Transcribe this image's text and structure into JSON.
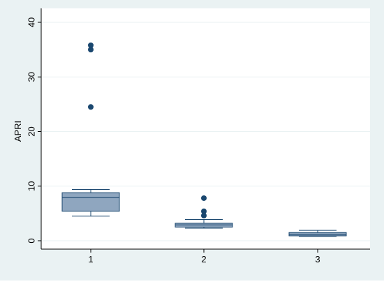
{
  "chart_data": {
    "type": "boxplot",
    "title": "",
    "xlabel": "",
    "ylabel": "APRI",
    "ylim": [
      0,
      40
    ],
    "y_ticks": [
      0,
      10,
      20,
      30,
      40
    ],
    "categories": [
      "1",
      "2",
      "3"
    ],
    "grid": true,
    "colors": {
      "outer_background": "#eaf2f3",
      "plot_background": "#ffffff",
      "gridline": "#eaf2f3",
      "box_fill": "#8fa6bf",
      "box_stroke": "#1a476f",
      "outlier": "#1a476f"
    },
    "boxes": [
      {
        "category": "1",
        "whisker_low": 4.5,
        "q1": 5.4,
        "median": 7.9,
        "q3": 8.8,
        "whisker_high": 9.4,
        "outliers": [
          24.5,
          35.0,
          35.8
        ]
      },
      {
        "category": "2",
        "whisker_low": 2.3,
        "q1": 2.5,
        "median": 2.9,
        "q3": 3.2,
        "whisker_high": 3.9,
        "outliers": [
          4.6,
          5.4,
          7.8
        ]
      },
      {
        "category": "3",
        "whisker_low": 0.8,
        "q1": 0.9,
        "median": 1.2,
        "q3": 1.5,
        "whisker_high": 1.9,
        "outliers": []
      }
    ]
  }
}
